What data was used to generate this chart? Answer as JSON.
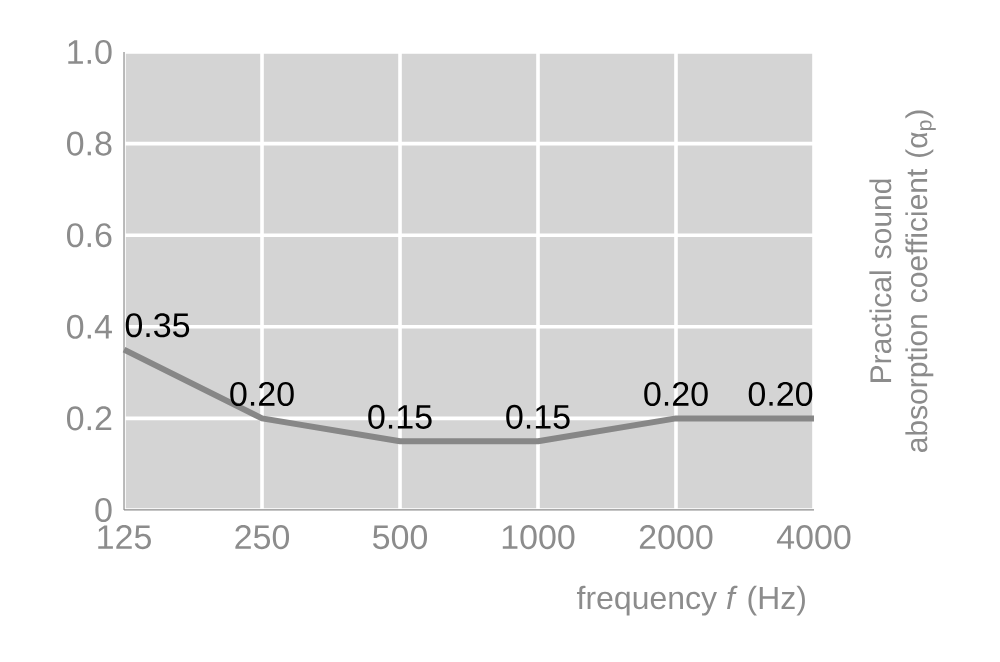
{
  "chart_data": {
    "type": "line",
    "categories": [
      "125",
      "250",
      "500",
      "1000",
      "2000",
      "4000"
    ],
    "values": [
      0.35,
      0.2,
      0.15,
      0.15,
      0.2,
      0.2
    ],
    "value_labels": [
      "0.35",
      "0.20",
      "0.15",
      "0.15",
      "0.20",
      "0.20"
    ],
    "color": "#878787",
    "xlabel": "frequency *f* (Hz)",
    "ylabel": "Practical sound absorption coefficient (α$_{p}$)",
    "ylim": [
      0,
      1
    ],
    "yticks": [
      0,
      0.2,
      0.4,
      0.6,
      0.8,
      {
        "value": 1,
        "label": "1.0"
      }
    ],
    "grid": true
  }
}
